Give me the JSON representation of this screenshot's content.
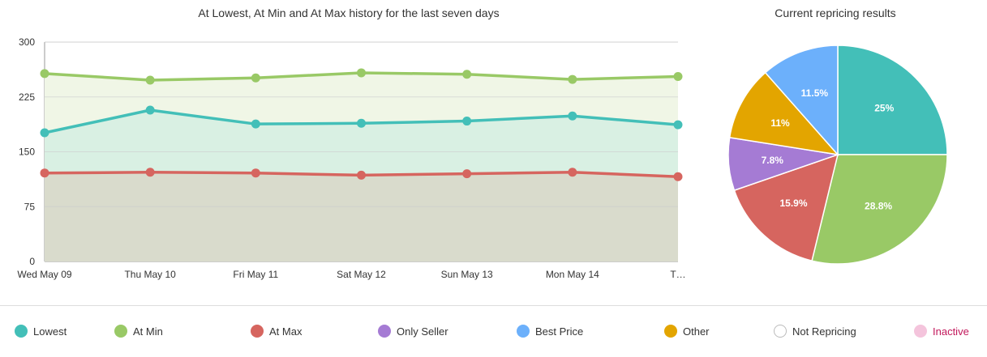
{
  "chart_data": [
    {
      "type": "area",
      "title": "At Lowest, At Min and At Max history for the last seven days",
      "categories": [
        "Wed May 09",
        "Thu May 10",
        "Fri May 11",
        "Sat May 12",
        "Sun May 13",
        "Mon May 14",
        "T…"
      ],
      "ylim": [
        0,
        300
      ],
      "yticks": [
        0,
        75,
        150,
        225,
        300
      ],
      "grid": true,
      "series": [
        {
          "name": "At Min",
          "color": "#99c966",
          "fill": "#f0f6e6",
          "values": [
            257,
            248,
            251,
            258,
            256,
            249,
            253
          ]
        },
        {
          "name": "Lowest",
          "color": "#43bfb8",
          "fill": "#d9f0e3",
          "values": [
            176,
            207,
            188,
            189,
            192,
            199,
            187
          ]
        },
        {
          "name": "At Max",
          "color": "#d6655f",
          "fill": "#d9dbcc",
          "values": [
            121,
            122,
            121,
            118,
            120,
            122,
            116
          ]
        }
      ]
    },
    {
      "type": "pie",
      "title": "Current repricing results",
      "slices": [
        {
          "name": "Lowest",
          "value": 25,
          "label": "25%",
          "color": "#43bfb8"
        },
        {
          "name": "At Min",
          "value": 28.8,
          "label": "28.8%",
          "color": "#99c966"
        },
        {
          "name": "At Max",
          "value": 15.9,
          "label": "15.9%",
          "color": "#d6655f"
        },
        {
          "name": "Only Seller",
          "value": 7.8,
          "label": "7.8%",
          "color": "#a57bd4"
        },
        {
          "name": "Other",
          "value": 11,
          "label": "11%",
          "color": "#e3a500"
        },
        {
          "name": "Best Price",
          "value": 11.5,
          "label": "11.5%",
          "color": "#6cb0fb"
        }
      ]
    }
  ],
  "legend": [
    {
      "label": "Lowest",
      "color": "#43bfb8"
    },
    {
      "label": "At Min",
      "color": "#99c966"
    },
    {
      "label": "At Max",
      "color": "#d6655f"
    },
    {
      "label": "Only Seller",
      "color": "#a57bd4"
    },
    {
      "label": "Best Price",
      "color": "#6cb0fb"
    },
    {
      "label": "Other",
      "color": "#e3a500"
    },
    {
      "label": "Not Repricing",
      "color": "#ffffff"
    },
    {
      "label": "Inactive",
      "color": "#f4c4dc"
    }
  ]
}
